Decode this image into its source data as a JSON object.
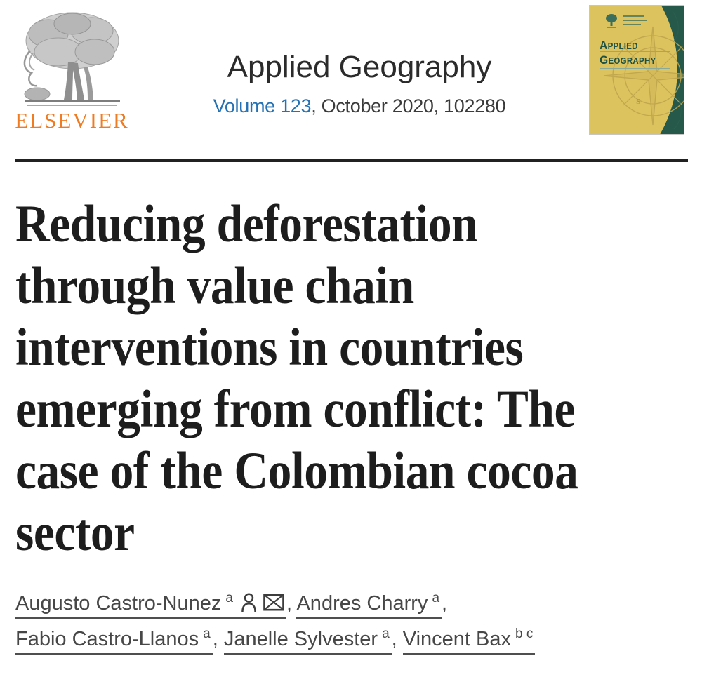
{
  "publisher": {
    "name": "ELSEVIER",
    "logo_icon": "elsevier-tree-logo"
  },
  "journal": {
    "title": "Applied Geography",
    "volume_link": "Volume 123",
    "issue_info_rest": ", October 2020, 102280",
    "cover_thumbnail": {
      "masthead_line1": "Applied",
      "masthead_line2": "Geography"
    }
  },
  "article": {
    "title": "Reducing deforestation through value chain interventions in countries emerging from conflict: The case of the Colombian cocoa sector",
    "title_lines": [
      "Reducing deforestation",
      "through value chain",
      "interventions in countries",
      "emerging from conflict: The",
      "case of the Colombian cocoa",
      "sector"
    ],
    "author_separator": ", ",
    "authors": [
      {
        "name": "Augusto Castro-Nunez",
        "affiliation_sup": "a",
        "has_profile_icon": true,
        "has_email_icon": true,
        "break_after": false
      },
      {
        "name": "Andres Charry",
        "affiliation_sup": "a",
        "has_profile_icon": false,
        "has_email_icon": false,
        "break_after": true
      },
      {
        "name": "Fabio Castro-Llanos",
        "affiliation_sup": "a",
        "has_profile_icon": false,
        "has_email_icon": false,
        "break_after": false
      },
      {
        "name": "Janelle Sylvester",
        "affiliation_sup": "a",
        "has_profile_icon": false,
        "has_email_icon": false,
        "break_after": false
      },
      {
        "name": "Vincent Bax",
        "affiliation_sup": "b c",
        "has_profile_icon": false,
        "has_email_icon": false,
        "break_after": false
      }
    ]
  },
  "colors": {
    "link_blue": "#2472b4",
    "elsevier_orange": "#ef7c23",
    "cover_green": "#26594a",
    "cover_yellow": "#ddc35e",
    "title_color": "#1d1d1d",
    "author_color": "#474747",
    "rule_color": "#212121"
  }
}
